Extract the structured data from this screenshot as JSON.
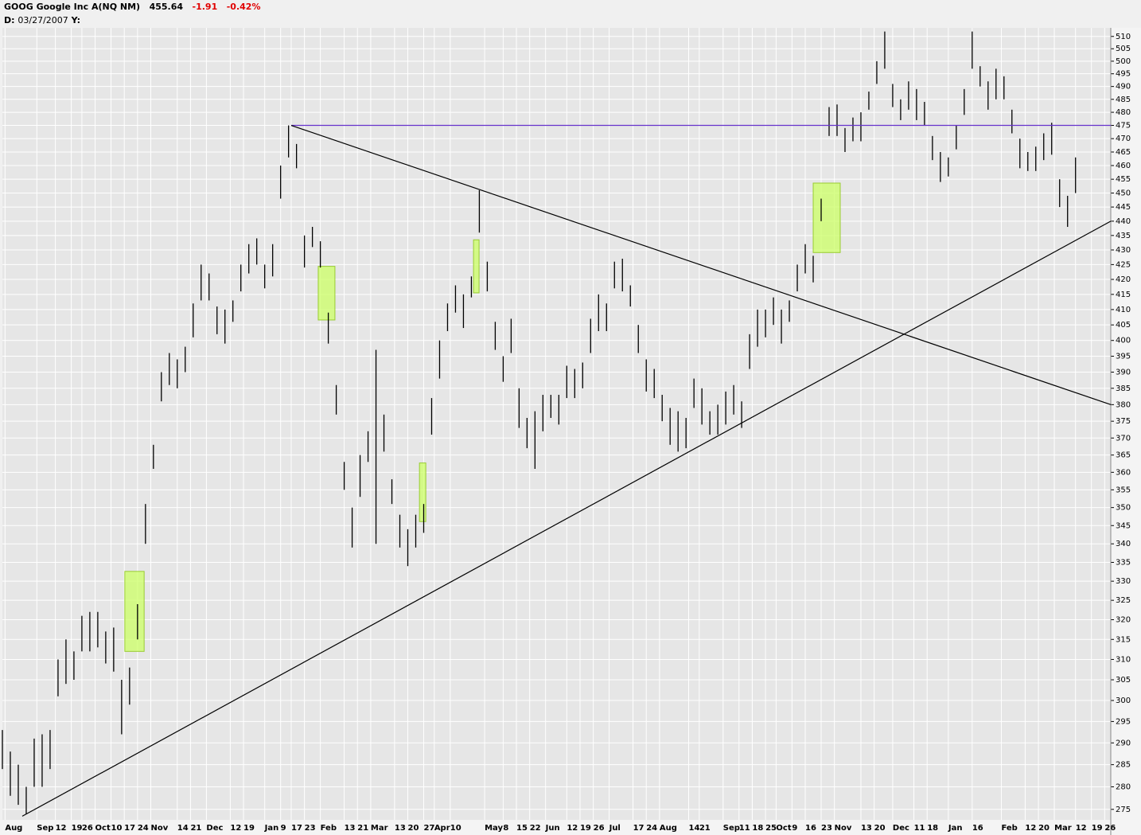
{
  "header": {
    "symbol": "GOOG Google Inc A(NQ NM)",
    "last": "455.64",
    "change": "-1.91",
    "change_pct": "-0.42%",
    "date_label": "D:",
    "date": "03/27/2007",
    "y_label": "Y:"
  },
  "chart_data": {
    "type": "ohlc",
    "log_scale": true,
    "grid": true,
    "color": "#000000",
    "x": [
      0,
      3,
      6,
      9,
      12,
      15,
      18,
      21,
      24,
      27,
      30,
      33,
      36,
      39,
      42,
      45,
      48,
      51,
      54,
      57,
      60,
      63,
      66,
      69,
      72,
      75,
      78,
      81,
      84,
      87,
      90,
      93,
      96,
      99,
      102,
      105,
      108,
      111,
      114,
      117,
      120,
      123,
      126,
      129,
      132,
      135,
      138,
      141,
      144,
      147,
      150,
      153,
      156,
      159,
      162,
      165,
      168,
      171,
      174,
      177,
      180,
      183,
      186,
      189,
      192,
      195,
      198,
      201,
      204,
      207,
      210,
      213,
      216,
      219,
      222,
      225,
      228,
      231,
      234,
      237,
      240,
      243,
      246,
      249,
      252,
      255,
      258,
      261,
      264,
      267,
      270,
      273,
      276,
      279,
      282,
      285,
      288,
      291,
      294,
      297,
      300,
      303,
      306,
      309,
      312,
      315,
      318,
      321,
      324,
      327,
      330,
      333,
      336,
      339,
      342,
      345,
      348,
      351,
      354,
      357,
      360,
      363,
      366,
      369,
      372,
      375,
      378,
      381,
      384,
      387,
      390,
      393,
      396,
      399,
      402,
      405
    ],
    "high": [
      293,
      288,
      285,
      280,
      291,
      292,
      293,
      310,
      315,
      312,
      321,
      322,
      322,
      317,
      318,
      305,
      308,
      324,
      351,
      368,
      390,
      396,
      394,
      398,
      412,
      425,
      422,
      411,
      410,
      413,
      425,
      432,
      434,
      425,
      432,
      460,
      475,
      468,
      435,
      438,
      433,
      409,
      386,
      363,
      350,
      365,
      372,
      397,
      377,
      358,
      348,
      344,
      348,
      351,
      382,
      400,
      412,
      418,
      415,
      421,
      451,
      426,
      406,
      395,
      407,
      385,
      376,
      378,
      383,
      383,
      383,
      392,
      391,
      393,
      407,
      415,
      412,
      426,
      427,
      418,
      405,
      394,
      391,
      383,
      379,
      378,
      376,
      388,
      385,
      378,
      380,
      384,
      386,
      381,
      402,
      410,
      410,
      414,
      410,
      413,
      425,
      432,
      428,
      448,
      482,
      483,
      474,
      478,
      480,
      488,
      500,
      512,
      491,
      485,
      492,
      489,
      484,
      471,
      465,
      463,
      475,
      489,
      512,
      498,
      492,
      497,
      494,
      481,
      470,
      465,
      467,
      472,
      476,
      455,
      449,
      463
    ],
    "low": [
      284,
      278,
      276,
      274,
      280,
      280,
      284,
      301,
      304,
      305,
      312,
      312,
      313,
      309,
      307,
      292,
      299,
      315,
      340,
      361,
      381,
      386,
      385,
      390,
      401,
      413,
      413,
      402,
      399,
      406,
      416,
      422,
      425,
      417,
      421,
      448,
      463,
      459,
      424,
      431,
      424,
      399,
      377,
      355,
      339,
      353,
      363,
      340,
      366,
      351,
      339,
      334,
      339,
      343,
      371,
      388,
      403,
      409,
      404,
      414,
      436,
      416,
      397,
      387,
      396,
      373,
      367,
      361,
      372,
      376,
      374,
      382,
      382,
      385,
      396,
      403,
      403,
      417,
      416,
      411,
      396,
      384,
      382,
      375,
      368,
      366,
      367,
      379,
      374,
      371,
      371,
      374,
      377,
      373,
      391,
      398,
      401,
      405,
      399,
      406,
      416,
      422,
      419,
      440,
      471,
      471,
      465,
      469,
      469,
      481,
      491,
      497,
      482,
      477,
      481,
      477,
      475,
      462,
      454,
      456,
      466,
      479,
      497,
      490,
      481,
      485,
      485,
      472,
      459,
      458,
      458,
      462,
      464,
      445,
      438,
      450
    ],
    "zones": [
      {
        "x": [
          46.2,
          53.5
        ],
        "y": [
          312,
          332.6
        ]
      },
      {
        "x": [
          119.2,
          125.5
        ],
        "y": [
          406.6,
          424.4
        ]
      },
      {
        "x": [
          157.4,
          159.8
        ],
        "y": [
          346.1,
          362.7
        ]
      },
      {
        "x": [
          177.8,
          179.9
        ],
        "y": [
          415.5,
          433.5
        ]
      },
      {
        "x": [
          306,
          316.2
        ],
        "y": [
          429.1,
          453.6
        ]
      }
    ],
    "zone_color": "#ccff66",
    "trendlines": [
      {
        "x": [
          109,
          418.3
        ],
        "y": [
          475,
          475
        ],
        "color": "#6633cc"
      },
      {
        "x": [
          109,
          418.3
        ],
        "y": [
          475,
          380
        ],
        "color": "#000000"
      },
      {
        "x": [
          7.5,
          418.3
        ],
        "y": [
          273.5,
          440
        ],
        "color": "#000000"
      }
    ],
    "xlim": [
      0,
      418.3
    ],
    "xticks": [
      {
        "value": 1,
        "label": "Aug"
      },
      {
        "value": 13,
        "label": "Sep"
      },
      {
        "value": 20,
        "label": "12"
      },
      {
        "value": 26,
        "label": "19"
      },
      {
        "value": 30,
        "label": "26"
      },
      {
        "value": 35,
        "label": "Oct"
      },
      {
        "value": 41,
        "label": "10"
      },
      {
        "value": 46,
        "label": "17"
      },
      {
        "value": 51,
        "label": "24"
      },
      {
        "value": 56,
        "label": "Nov"
      },
      {
        "value": 66,
        "label": "14"
      },
      {
        "value": 71,
        "label": "21"
      },
      {
        "value": 77,
        "label": "Dec"
      },
      {
        "value": 86,
        "label": "12"
      },
      {
        "value": 91,
        "label": "19"
      },
      {
        "value": 99,
        "label": "Jan"
      },
      {
        "value": 105,
        "label": "9"
      },
      {
        "value": 109,
        "label": "17"
      },
      {
        "value": 114,
        "label": "23"
      },
      {
        "value": 120,
        "label": "Feb"
      },
      {
        "value": 129,
        "label": "13"
      },
      {
        "value": 134,
        "label": "21"
      },
      {
        "value": 139,
        "label": "Mar"
      },
      {
        "value": 148,
        "label": "13"
      },
      {
        "value": 153,
        "label": "20"
      },
      {
        "value": 159,
        "label": "27"
      },
      {
        "value": 163,
        "label": "Apr"
      },
      {
        "value": 169,
        "label": "10"
      },
      {
        "value": 182,
        "label": "May"
      },
      {
        "value": 189,
        "label": "8"
      },
      {
        "value": 194,
        "label": "15"
      },
      {
        "value": 199,
        "label": "22"
      },
      {
        "value": 205,
        "label": "Jun"
      },
      {
        "value": 213,
        "label": "12"
      },
      {
        "value": 218,
        "label": "19"
      },
      {
        "value": 223,
        "label": "26"
      },
      {
        "value": 229,
        "label": "Jul"
      },
      {
        "value": 238,
        "label": "17"
      },
      {
        "value": 243,
        "label": "24"
      },
      {
        "value": 248,
        "label": "Aug"
      },
      {
        "value": 259,
        "label": "14"
      },
      {
        "value": 263,
        "label": "21"
      },
      {
        "value": 272,
        "label": "Sep"
      },
      {
        "value": 278,
        "label": "11"
      },
      {
        "value": 283,
        "label": "18"
      },
      {
        "value": 288,
        "label": "25"
      },
      {
        "value": 292,
        "label": "Oct"
      },
      {
        "value": 298,
        "label": "9"
      },
      {
        "value": 303,
        "label": "16"
      },
      {
        "value": 309,
        "label": "23"
      },
      {
        "value": 314,
        "label": "Nov"
      },
      {
        "value": 324,
        "label": "13"
      },
      {
        "value": 329,
        "label": "20"
      },
      {
        "value": 336,
        "label": "Dec"
      },
      {
        "value": 344,
        "label": "11"
      },
      {
        "value": 349,
        "label": "18"
      },
      {
        "value": 357,
        "label": "Jan"
      },
      {
        "value": 366,
        "label": "16"
      },
      {
        "value": 377,
        "label": "Feb"
      },
      {
        "value": 386,
        "label": "12"
      },
      {
        "value": 391,
        "label": "20"
      },
      {
        "value": 397,
        "label": "Mar"
      },
      {
        "value": 405,
        "label": "12"
      },
      {
        "value": 411,
        "label": "19"
      },
      {
        "value": 416,
        "label": "26"
      }
    ],
    "ylim": [
      272.7,
      513.5
    ],
    "yticks": [
      275,
      280,
      285,
      290,
      295,
      300,
      305,
      310,
      315,
      320,
      325,
      330,
      335,
      340,
      345,
      350,
      355,
      360,
      365,
      370,
      375,
      380,
      385,
      390,
      395,
      400,
      405,
      410,
      415,
      420,
      425,
      430,
      435,
      440,
      445,
      450,
      455,
      460,
      465,
      470,
      475,
      480,
      485,
      490,
      495,
      500,
      505,
      510
    ]
  }
}
